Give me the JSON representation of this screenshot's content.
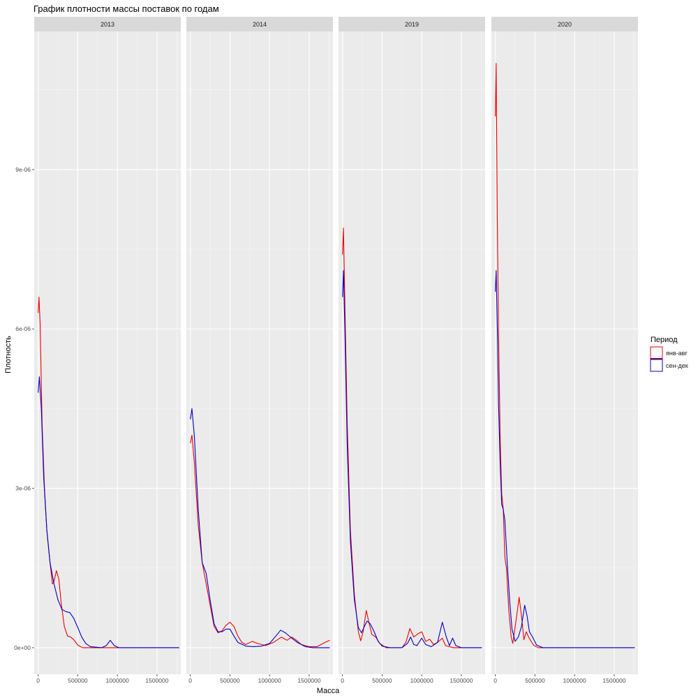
{
  "chart_data": {
    "type": "line",
    "title": "График плотности массы поставок по годам",
    "xlabel": "Масса",
    "ylabel": "Плотность",
    "facets": [
      "2013",
      "2014",
      "2019",
      "2020"
    ],
    "xlim": [
      -50000,
      1800000
    ],
    "ylim": [
      -5e-07,
      1.16e-05
    ],
    "x_ticks": [
      0,
      500000,
      1000000,
      1500000
    ],
    "x_tick_labels": [
      "0",
      "500000",
      "1000000",
      "1500000"
    ],
    "y_ticks": [
      0,
      3e-06,
      6e-06,
      9e-06
    ],
    "y_tick_labels": [
      "0e+00",
      "3e-06",
      "6e-06",
      "9e-06"
    ],
    "grid": true,
    "legend": {
      "title": "Период",
      "placement": "right",
      "entries": [
        {
          "label": "янв-авг",
          "color": "#ee0000"
        },
        {
          "label": "сен-дек",
          "color": "#0000cc"
        }
      ]
    },
    "panels": [
      {
        "facet": "2013",
        "series": [
          {
            "name": "янв-авг",
            "color": "#ee0000",
            "points": [
              [
                0,
                6.3e-06
              ],
              [
                10000,
                6.6e-06
              ],
              [
                25000,
                6.1e-06
              ],
              [
                50000,
                4.2e-06
              ],
              [
                80000,
                3e-06
              ],
              [
                110000,
                2.2e-06
              ],
              [
                150000,
                1.6e-06
              ],
              [
                180000,
                1.2e-06
              ],
              [
                200000,
                1.25e-06
              ],
              [
                230000,
                1.45e-06
              ],
              [
                260000,
                1.3e-06
              ],
              [
                290000,
                8.5e-07
              ],
              [
                330000,
                4e-07
              ],
              [
                370000,
                2.2e-07
              ],
              [
                410000,
                2e-07
              ],
              [
                450000,
                1.5e-07
              ],
              [
                500000,
                5e-08
              ],
              [
                560000,
                0
              ],
              [
                1000000,
                0
              ],
              [
                1780000,
                0
              ]
            ]
          },
          {
            "name": "сен-дек",
            "color": "#0000cc",
            "points": [
              [
                0,
                4.8e-06
              ],
              [
                15000,
                5.1e-06
              ],
              [
                40000,
                4.5e-06
              ],
              [
                70000,
                3.2e-06
              ],
              [
                110000,
                2.2e-06
              ],
              [
                150000,
                1.6e-06
              ],
              [
                200000,
                1.2e-06
              ],
              [
                250000,
                9e-07
              ],
              [
                300000,
                7.2e-07
              ],
              [
                350000,
                6.8e-07
              ],
              [
                400000,
                6.6e-07
              ],
              [
                450000,
                5.5e-07
              ],
              [
                500000,
                3.8e-07
              ],
              [
                550000,
                2e-07
              ],
              [
                600000,
                8e-08
              ],
              [
                660000,
                2e-08
              ],
              [
                800000,
                0
              ],
              [
                860000,
                4e-08
              ],
              [
                910000,
                1.4e-07
              ],
              [
                960000,
                4e-08
              ],
              [
                1020000,
                0
              ],
              [
                1780000,
                0
              ]
            ]
          }
        ]
      },
      {
        "facet": "2014",
        "series": [
          {
            "name": "янв-авг",
            "color": "#ee0000",
            "points": [
              [
                0,
                3.85e-06
              ],
              [
                20000,
                4e-06
              ],
              [
                50000,
                3.5e-06
              ],
              [
                100000,
                2.3e-06
              ],
              [
                150000,
                1.6e-06
              ],
              [
                200000,
                1.2e-06
              ],
              [
                250000,
                8e-07
              ],
              [
                300000,
                4e-07
              ],
              [
                350000,
                2.8e-07
              ],
              [
                400000,
                3.2e-07
              ],
              [
                450000,
                4.2e-07
              ],
              [
                500000,
                4.8e-07
              ],
              [
                550000,
                4e-07
              ],
              [
                600000,
                2.2e-07
              ],
              [
                650000,
                1e-07
              ],
              [
                700000,
                6e-08
              ],
              [
                780000,
                1.2e-07
              ],
              [
                850000,
                8e-08
              ],
              [
                950000,
                4e-08
              ],
              [
                1050000,
                1e-07
              ],
              [
                1150000,
                2e-07
              ],
              [
                1220000,
                1.4e-07
              ],
              [
                1280000,
                2e-07
              ],
              [
                1340000,
                1.4e-07
              ],
              [
                1400000,
                6e-08
              ],
              [
                1500000,
                2e-08
              ],
              [
                1600000,
                2e-08
              ],
              [
                1700000,
                1e-07
              ],
              [
                1760000,
                1.4e-07
              ]
            ]
          },
          {
            "name": "сен-дек",
            "color": "#0000cc",
            "points": [
              [
                0,
                4.3e-06
              ],
              [
                20000,
                4.5e-06
              ],
              [
                50000,
                4e-06
              ],
              [
                100000,
                2.6e-06
              ],
              [
                150000,
                1.6e-06
              ],
              [
                200000,
                1.4e-06
              ],
              [
                250000,
                9e-07
              ],
              [
                300000,
                4.5e-07
              ],
              [
                350000,
                3e-07
              ],
              [
                400000,
                3e-07
              ],
              [
                450000,
                3.5e-07
              ],
              [
                500000,
                3.5e-07
              ],
              [
                550000,
                2.2e-07
              ],
              [
                600000,
                1e-07
              ],
              [
                700000,
                3e-08
              ],
              [
                800000,
                2e-08
              ],
              [
                900000,
                3e-08
              ],
              [
                1000000,
                8e-08
              ],
              [
                1080000,
                2.2e-07
              ],
              [
                1140000,
                3.3e-07
              ],
              [
                1200000,
                2.8e-07
              ],
              [
                1280000,
                1.8e-07
              ],
              [
                1350000,
                1e-07
              ],
              [
                1450000,
                2e-08
              ],
              [
                1550000,
                0
              ],
              [
                1760000,
                0
              ]
            ]
          }
        ]
      },
      {
        "facet": "2019",
        "series": [
          {
            "name": "янв-авг",
            "color": "#ee0000",
            "points": [
              [
                0,
                7.4e-06
              ],
              [
                12000,
                7.9e-06
              ],
              [
                30000,
                6.5e-06
              ],
              [
                60000,
                4.2e-06
              ],
              [
                100000,
                2.2e-06
              ],
              [
                150000,
                1e-06
              ],
              [
                200000,
                3e-07
              ],
              [
                230000,
                1.3e-07
              ],
              [
                260000,
                3e-07
              ],
              [
                300000,
                7e-07
              ],
              [
                330000,
                5e-07
              ],
              [
                370000,
                2.5e-07
              ],
              [
                420000,
                2e-07
              ],
              [
                470000,
                8e-08
              ],
              [
                550000,
                0
              ],
              [
                750000,
                0
              ],
              [
                800000,
                1e-07
              ],
              [
                850000,
                3.6e-07
              ],
              [
                900000,
                2e-07
              ],
              [
                950000,
                2.6e-07
              ],
              [
                1000000,
                3e-07
              ],
              [
                1050000,
                1.2e-07
              ],
              [
                1100000,
                1.6e-07
              ],
              [
                1150000,
                6e-08
              ],
              [
                1200000,
                1e-07
              ],
              [
                1260000,
                1.8e-07
              ],
              [
                1300000,
                4e-08
              ],
              [
                1400000,
                0
              ],
              [
                1760000,
                0
              ]
            ]
          },
          {
            "name": "сен-дек",
            "color": "#0000cc",
            "points": [
              [
                0,
                6.6e-06
              ],
              [
                12000,
                7.1e-06
              ],
              [
                30000,
                6e-06
              ],
              [
                60000,
                3.8e-06
              ],
              [
                100000,
                2e-06
              ],
              [
                150000,
                9e-07
              ],
              [
                200000,
                3.8e-07
              ],
              [
                240000,
                2.8e-07
              ],
              [
                270000,
                3.8e-07
              ],
              [
                310000,
                5e-07
              ],
              [
                350000,
                4.5e-07
              ],
              [
                400000,
                3e-07
              ],
              [
                450000,
                1.2e-07
              ],
              [
                500000,
                3e-08
              ],
              [
                600000,
                0
              ],
              [
                750000,
                0
              ],
              [
                820000,
                8e-08
              ],
              [
                860000,
                2e-07
              ],
              [
                900000,
                6e-08
              ],
              [
                940000,
                4e-08
              ],
              [
                1000000,
                1.8e-07
              ],
              [
                1050000,
                6e-08
              ],
              [
                1120000,
                2e-08
              ],
              [
                1200000,
                1e-07
              ],
              [
                1260000,
                4.8e-07
              ],
              [
                1310000,
                2e-07
              ],
              [
                1350000,
                4e-08
              ],
              [
                1390000,
                1.8e-07
              ],
              [
                1430000,
                4e-08
              ],
              [
                1500000,
                0
              ],
              [
                1760000,
                0
              ]
            ]
          }
        ]
      },
      {
        "facet": "2020",
        "series": [
          {
            "name": "янв-авг",
            "color": "#ee0000",
            "points": [
              [
                0,
                1e-05
              ],
              [
                10000,
                1.1e-05
              ],
              [
                25000,
                8e-06
              ],
              [
                40000,
                6e-06
              ],
              [
                60000,
                4e-06
              ],
              [
                80000,
                2.9e-06
              ],
              [
                100000,
                2.6e-06
              ],
              [
                120000,
                1.7e-06
              ],
              [
                140000,
                1.5e-06
              ],
              [
                170000,
                7e-07
              ],
              [
                200000,
                2e-07
              ],
              [
                220000,
                8e-08
              ],
              [
                260000,
                5e-07
              ],
              [
                300000,
                9.5e-07
              ],
              [
                330000,
                6e-07
              ],
              [
                360000,
                1.5e-07
              ],
              [
                390000,
                3e-07
              ],
              [
                420000,
                2e-07
              ],
              [
                480000,
                5e-08
              ],
              [
                540000,
                0
              ],
              [
                1760000,
                0
              ]
            ]
          },
          {
            "name": "сен-дек",
            "color": "#0000cc",
            "points": [
              [
                0,
                6.7e-06
              ],
              [
                10000,
                7.1e-06
              ],
              [
                25000,
                6e-06
              ],
              [
                40000,
                4.6e-06
              ],
              [
                60000,
                3.5e-06
              ],
              [
                80000,
                2.7e-06
              ],
              [
                100000,
                2.6e-06
              ],
              [
                120000,
                2.4e-06
              ],
              [
                150000,
                1.6e-06
              ],
              [
                180000,
                9e-07
              ],
              [
                210000,
                3.5e-07
              ],
              [
                250000,
                1.2e-07
              ],
              [
                290000,
                2e-07
              ],
              [
                330000,
                4e-07
              ],
              [
                370000,
                8e-07
              ],
              [
                400000,
                6e-07
              ],
              [
                430000,
                3e-07
              ],
              [
                470000,
                2e-07
              ],
              [
                520000,
                5e-08
              ],
              [
                600000,
                0
              ],
              [
                1760000,
                0
              ]
            ]
          }
        ]
      }
    ]
  }
}
